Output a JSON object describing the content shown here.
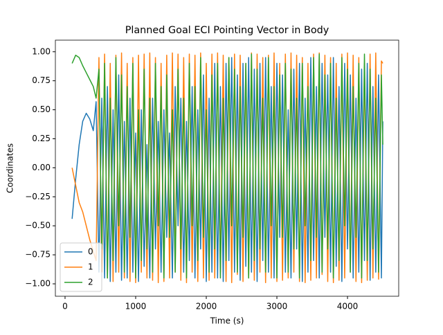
{
  "chart_data": {
    "type": "line",
    "title": "Planned Goal ECI Pointing Vector in Body",
    "x_label": "Time (s)",
    "y_label": "Coordinates",
    "x": [
      100,
      150,
      200,
      250,
      300,
      350,
      400,
      440,
      480,
      520,
      560,
      600,
      640,
      680,
      720,
      760,
      800,
      840,
      880,
      920,
      960,
      1000,
      1040,
      1080,
      1120,
      1160,
      1200,
      1240,
      1280,
      1320,
      1360,
      1400,
      1440,
      1480,
      1520,
      1560,
      1600,
      1640,
      1680,
      1720,
      1760,
      1800,
      1840,
      1880,
      1920,
      1960,
      2000,
      2040,
      2080,
      2120,
      2160,
      2200,
      2240,
      2280,
      2320,
      2360,
      2400,
      2440,
      2480,
      2520,
      2560,
      2600,
      2640,
      2680,
      2720,
      2760,
      2800,
      2840,
      2880,
      2920,
      2960,
      3000,
      3040,
      3080,
      3120,
      3160,
      3200,
      3240,
      3280,
      3320,
      3360,
      3400,
      3440,
      3480,
      3520,
      3560,
      3600,
      3640,
      3680,
      3720,
      3760,
      3800,
      3840,
      3880,
      3920,
      3960,
      4000,
      4040,
      4080,
      4120,
      4160,
      4200,
      4240,
      4280,
      4320,
      4360,
      4400,
      4440,
      4480,
      4500
    ],
    "series": [
      {
        "name": "0",
        "color": "#1f77b4",
        "values": [
          -0.44,
          -0.1,
          0.2,
          0.4,
          0.47,
          0.42,
          0.32,
          0.57,
          -0.9,
          0.6,
          -0.95,
          0.7,
          -0.98,
          0.5,
          -0.9,
          0.8,
          -0.97,
          0.4,
          -0.95,
          0.6,
          -0.9,
          0.3,
          -0.98,
          0.5,
          -0.85,
          0.2,
          -0.95,
          0.6,
          -0.7,
          0.4,
          -0.9,
          0.5,
          -0.6,
          0.3,
          -0.95,
          0.7,
          -0.5,
          0.6,
          -0.9,
          0.4,
          -0.8,
          0.7,
          -0.95,
          0.5,
          -0.7,
          0.8,
          -0.98,
          0.6,
          -0.9,
          0.9,
          -0.95,
          0.7,
          -0.98,
          0.9,
          -0.8,
          0.95,
          -0.9,
          0.8,
          -0.97,
          0.9,
          -0.85,
          0.95,
          -0.9,
          0.85,
          -0.98,
          0.9,
          -0.8,
          0.95,
          -0.9,
          0.7,
          -0.95,
          0.9,
          -0.6,
          0.8,
          -0.9,
          0.5,
          -0.95,
          0.85,
          -0.7,
          0.9,
          -0.98,
          0.6,
          -0.9,
          0.95,
          -0.8,
          0.7,
          -0.95,
          0.9,
          -0.6,
          0.8,
          -0.9,
          0.95,
          -0.85,
          0.7,
          -0.98,
          0.9,
          -0.7,
          0.8,
          -0.95,
          0.6,
          -0.9,
          0.85,
          -0.8,
          0.9,
          -0.97,
          0.7,
          -0.9,
          0.8,
          -0.95,
          0.4
        ]
      },
      {
        "name": "1",
        "color": "#ff7f0e",
        "values": [
          0.0,
          -0.15,
          -0.3,
          -0.38,
          -0.5,
          -0.62,
          -0.72,
          -0.8,
          0.95,
          -0.9,
          0.98,
          -0.95,
          0.9,
          -0.98,
          0.97,
          -0.9,
          0.99,
          -0.95,
          0.9,
          -0.98,
          0.95,
          -0.99,
          0.97,
          -0.9,
          0.98,
          -0.95,
          0.99,
          -0.97,
          0.95,
          -0.99,
          0.9,
          -0.98,
          0.97,
          -0.95,
          0.99,
          -0.9,
          0.98,
          -0.97,
          0.95,
          -0.99,
          0.98,
          -0.9,
          0.97,
          -0.98,
          0.99,
          -0.95,
          0.9,
          -0.97,
          0.98,
          -0.95,
          0.99,
          -0.9,
          0.97,
          -0.98,
          0.95,
          -0.99,
          0.98,
          -0.92,
          0.97,
          -0.98,
          0.9,
          -0.95,
          0.99,
          -0.97,
          0.98,
          -0.9,
          0.95,
          -0.99,
          0.97,
          -0.95,
          0.99,
          -0.98,
          0.9,
          -0.97,
          0.98,
          -0.95,
          0.99,
          -0.9,
          0.97,
          -0.98,
          0.95,
          -0.99,
          0.9,
          -0.97,
          0.98,
          -0.95,
          0.99,
          -0.92,
          0.97,
          -0.98,
          0.95,
          -0.99,
          0.9,
          -0.97,
          0.98,
          -0.95,
          0.99,
          -0.9,
          0.97,
          -0.98,
          0.95,
          -0.99,
          0.9,
          -0.97,
          0.98,
          -0.95,
          0.99,
          -0.96,
          0.92,
          0.9
        ]
      },
      {
        "name": "2",
        "color": "#2ca02c",
        "values": [
          0.9,
          0.97,
          0.95,
          0.88,
          0.82,
          0.76,
          0.7,
          0.6,
          0.85,
          -0.7,
          0.9,
          -0.95,
          0.6,
          -0.8,
          0.95,
          -0.5,
          0.8,
          -0.9,
          0.7,
          -0.6,
          0.9,
          -0.95,
          0.5,
          -0.8,
          0.85,
          -0.7,
          0.6,
          -0.9,
          0.9,
          -0.5,
          0.7,
          -0.95,
          0.8,
          -0.6,
          0.5,
          -0.9,
          0.85,
          -0.7,
          0.6,
          -0.95,
          0.9,
          -0.5,
          0.7,
          -0.8,
          0.95,
          -0.6,
          0.5,
          -0.9,
          0.8,
          -0.7,
          0.9,
          -0.95,
          0.6,
          -0.8,
          0.95,
          -0.5,
          0.85,
          -0.9,
          0.7,
          -0.6,
          0.9,
          -0.95,
          0.98,
          -0.8,
          0.85,
          -0.7,
          0.6,
          -0.9,
          0.95,
          -0.5,
          0.7,
          -0.95,
          0.8,
          -0.6,
          0.9,
          -0.9,
          0.85,
          -0.7,
          0.6,
          -0.95,
          0.9,
          -0.5,
          0.7,
          -0.8,
          0.95,
          -0.6,
          0.98,
          -0.9,
          0.8,
          -0.7,
          0.9,
          -0.95,
          0.6,
          -0.8,
          0.95,
          -0.5,
          0.85,
          -0.9,
          0.7,
          -0.6,
          0.9,
          -0.95,
          0.98,
          -0.8,
          0.85,
          -0.7,
          0.6,
          -0.9,
          0.8,
          0.2
        ]
      }
    ],
    "xlim": [
      -137,
      4725
    ],
    "xticks": [
      0,
      1000,
      2000,
      3000,
      4000
    ],
    "ylim": [
      -1.107,
      1.1
    ],
    "yticks": [
      {
        "value": -1,
        "label": "−1.00"
      },
      {
        "value": -0.75,
        "label": "−0.75"
      },
      {
        "value": -0.5,
        "label": "−0.50"
      },
      {
        "value": -0.25,
        "label": "−0.25"
      },
      {
        "value": 0,
        "label": "0.00"
      },
      {
        "value": 0.25,
        "label": "0.25"
      },
      {
        "value": 0.5,
        "label": "0.50"
      },
      {
        "value": 0.75,
        "label": "0.75"
      },
      {
        "value": 1,
        "label": "1.00"
      }
    ],
    "legend": "lower left",
    "grid": false
  }
}
